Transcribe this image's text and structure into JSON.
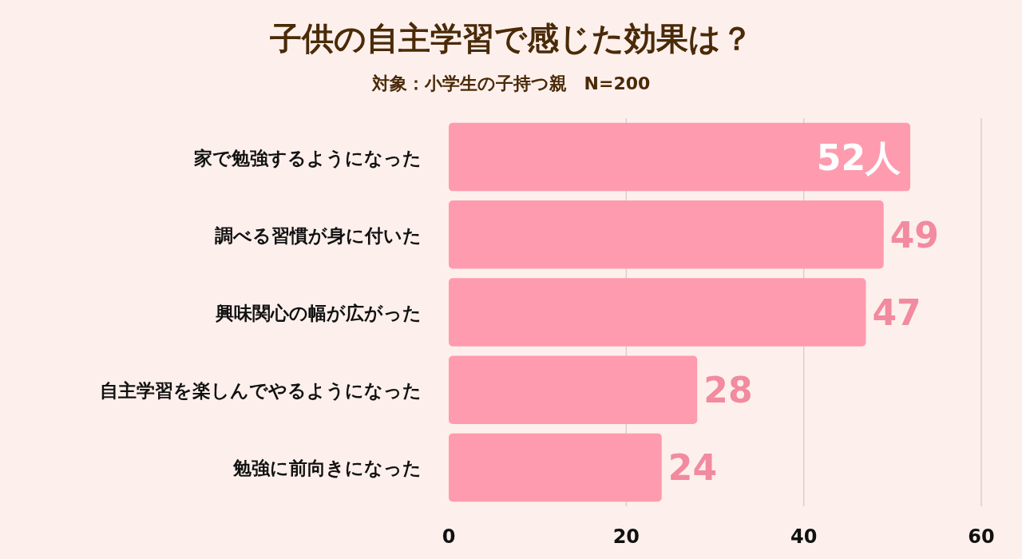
{
  "chart_data": {
    "type": "bar",
    "orientation": "horizontal",
    "title": "子供の自主学習で感じた効果は？",
    "subtitle": "対象：小学生の子持つ親　N=200",
    "categories": [
      "家で勉強するようになった",
      "調べる習慣が身に付いた",
      "興味関心の幅が広がった",
      "自主学習を楽しんでやるようになった",
      "勉強に前向きになった"
    ],
    "values": [
      52,
      49,
      47,
      28,
      24
    ],
    "value_labels": [
      "52人",
      "49",
      "47",
      "28",
      "24"
    ],
    "color": "#ff9bae",
    "xlim": [
      0,
      60
    ],
    "xticks": [
      0,
      20,
      40,
      60
    ],
    "grid": "x"
  }
}
